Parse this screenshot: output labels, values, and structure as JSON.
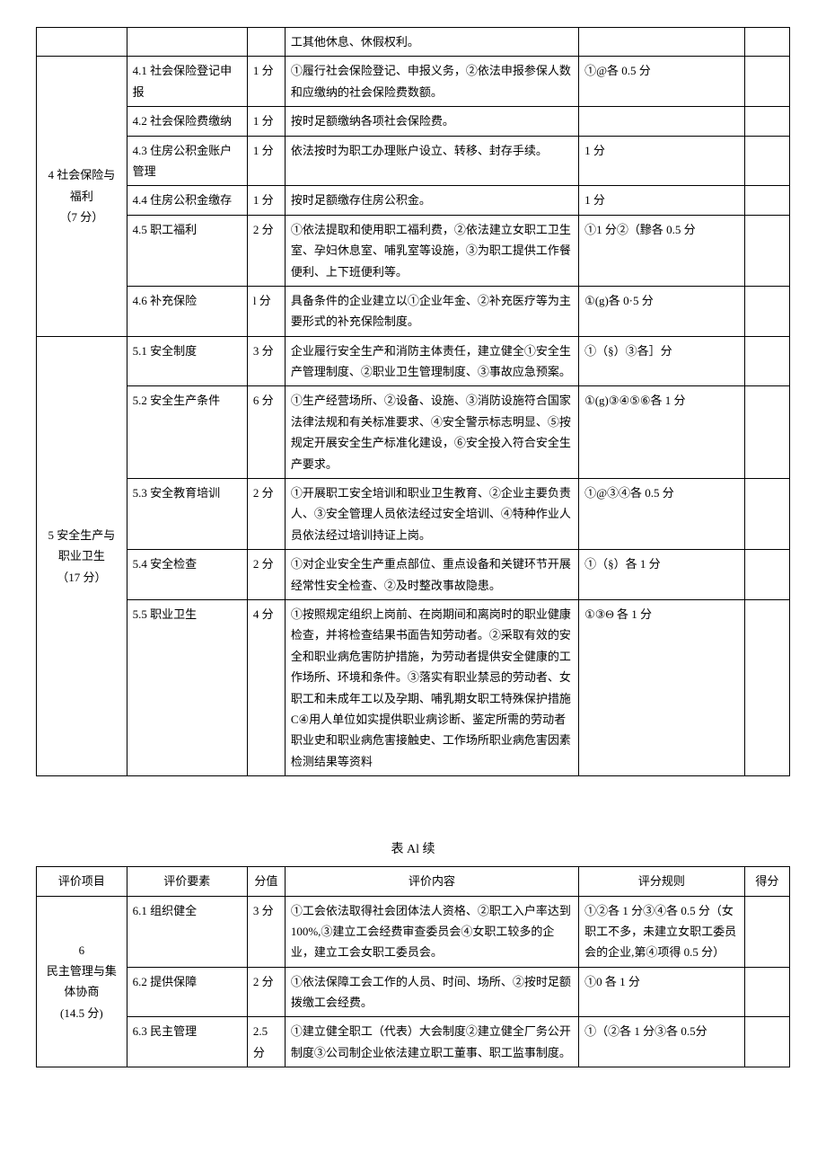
{
  "topRowContent": "工其他休息、休假权利。",
  "section4": {
    "project": "4 社会保险与福利",
    "projectScore": "（7 分）",
    "rows": [
      {
        "element": "4.1 社会保险登记申报",
        "score": "1 分",
        "content": "①履行社会保险登记、申报义务，②依法申报参保人数和应缴纳的社会保险费数额。",
        "rule": "①@各 0.5 分"
      },
      {
        "element": "4.2 社会保险费缴纳",
        "score": "1 分",
        "content": "按时足额缴纳各项社会保险费。",
        "rule": ""
      },
      {
        "element": "4.3 住房公积金账户管理",
        "score": "1 分",
        "content": "依法按时为职工办理账户设立、转移、封存手续。",
        "rule": "1 分"
      },
      {
        "element": "4.4 住房公积金缴存",
        "score": "1 分",
        "content": "按时足额缴存住房公积金。",
        "rule": "1 分"
      },
      {
        "element": "4.5 职工福利",
        "score": "2 分",
        "content": "①依法提取和使用职工福利费，②依法建立女职工卫生室、孕妇休息室、哺乳室等设施，③为职工提供工作餐便利、上下班便利等。",
        "rule": "①1 分②（黲各 0.5 分"
      },
      {
        "element": "4.6 补充保险",
        "score": "l 分",
        "content": "具备条件的企业建立以①企业年金、②补充医疗等为主要形式的补充保险制度。",
        "rule": "①(g)各 0·5 分"
      }
    ]
  },
  "section5": {
    "project": "5 安全生产与职业卫生",
    "projectScore": "（17 分）",
    "rows": [
      {
        "element": "5.1 安全制度",
        "score": "3 分",
        "content": "企业履行安全生产和消防主体责任，建立健全①安全生产管理制度、②职业卫生管理制度、③事故应急预案。",
        "rule": "①（§）③各］分"
      },
      {
        "element": "5.2 安全生产条件",
        "score": "6 分",
        "content": "①生产经营场所、②设备、设施、③消防设施符合国家法律法规和有关标准要求、④安全警示标志明显、⑤按规定开展安全生产标准化建设，⑥安全投入符合安全生产要求。",
        "rule": "①(g)③④⑤⑥各 1 分"
      },
      {
        "element": "5.3 安全教育培训",
        "score": "2 分",
        "content": "①开展职工安全培训和职业卫生教育、②企业主要负责人、③安全管理人员依法经过安全培训、④特种作业人员依法经过培训持证上岗。",
        "rule": "①@③④各 0.5 分"
      },
      {
        "element": "5.4 安全检查",
        "score": "2 分",
        "content": "①对企业安全生产重点部位、重点设备和关键环节开展经常性安全检查、②及时整改事故隐患。",
        "rule": "①（§）各 1 分"
      },
      {
        "element": "5.5 职业卫生",
        "score": "4 分",
        "content": "①按照规定组织上岗前、在岗期间和离岗时的职业健康检查，并将检查结果书面告知劳动者。②采取有效的安全和职业病危害防护措施，为劳动者提供安全健康的工作场所、环境和条件。③落实有职业禁忌的劳动者、女职工和未成年工以及孕期、哺乳期女职工特殊保护措施 C④用人单位如实提供职业病诊断、鉴定所需的劳动者职业史和职业病危害接触史、工作场所职业病危害因素检测结果等资料",
        "rule": "①③Θ 各 1 分"
      }
    ]
  },
  "table2": {
    "title": "表 Al 续",
    "headers": {
      "project": "评价项目",
      "element": "评价要素",
      "score": "分值",
      "content": "评价内容",
      "rule": "评分规则",
      "result": "得分"
    },
    "section6": {
      "project": "6",
      "projectName": "民主管理与集体协商",
      "projectScore": "(14.5 分)",
      "rows": [
        {
          "element": "6.1 组织健全",
          "score": "3 分",
          "content": "①工会依法取得社会团体法人资格、②职工入户率达到 100%,③建立工会经费审查委员会④女职工较多的企业，建立工会女职工委员会。",
          "rule": "①②各 1 分③④各 0.5 分（女职工不多，未建立女职工委员会的企业,第④项得 0.5 分）"
        },
        {
          "element": "6.2 提供保障",
          "score": "2 分",
          "content": "①依法保障工会工作的人员、时间、场所、②按时足额拨缴工会经费。",
          "rule": "①0 各 1 分"
        },
        {
          "element": "6.3 民主管理",
          "score": "2.5 分",
          "content": "①建立健全职工（代表）大会制度②建立健全厂务公开制度③公司制企业依法建立职工董事、职工监事制度。",
          "rule": "①（②各 1 分③各 0.5分"
        }
      ]
    }
  }
}
